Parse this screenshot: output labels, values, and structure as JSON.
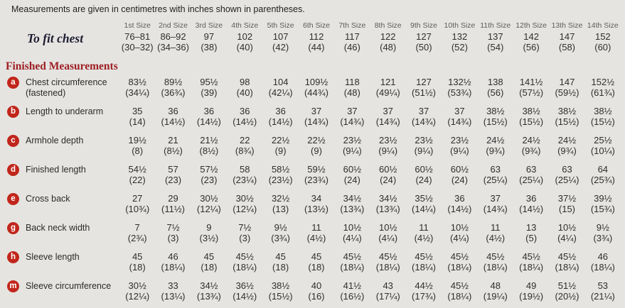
{
  "note": "Measurements are given in centimetres with inches shown in parentheses.",
  "colors": {
    "background": "#e5e4e1",
    "badge_red": "#c1261b",
    "heading_red": "#9e1f24",
    "header_gray": "#5c5c5c",
    "text_dark": "#2b2b2b",
    "to_fit_navy": "#1d1c30"
  },
  "table": {
    "size_headers": [
      "1st Size",
      "2nd Size",
      "3rd Size",
      "4th Size",
      "5th Size",
      "6th Size",
      "7th Size",
      "8th Size",
      "9th Size",
      "10th Size",
      "11th Size",
      "12th Size",
      "13th Size",
      "14th Size"
    ],
    "to_fit": {
      "label": "To fit chest",
      "cm": [
        "76–81",
        "86–92",
        "97",
        "102",
        "107",
        "112",
        "117",
        "122",
        "127",
        "132",
        "137",
        "142",
        "147",
        "152"
      ],
      "inches": [
        "(30–32)",
        "(34–36)",
        "(38)",
        "(40)",
        "(42)",
        "(44)",
        "(46)",
        "(48)",
        "(50)",
        "(52)",
        "(54)",
        "(56)",
        "(58)",
        "(60)"
      ]
    },
    "section_title": "Finished Measurements",
    "rows": [
      {
        "badge": "a",
        "label_lines": [
          "Chest circumference",
          "(fastened)"
        ],
        "cm": [
          "83½",
          "89½",
          "95½",
          "98",
          "104",
          "109½",
          "118",
          "121",
          "127",
          "132½",
          "138",
          "141½",
          "147",
          "152½"
        ],
        "inches": [
          "(34¼)",
          "(36¾)",
          "(39)",
          "(40)",
          "(42¼)",
          "(44¾)",
          "(48)",
          "(49¼)",
          "(51½)",
          "(53¾)",
          "(56)",
          "(57½)",
          "(59½)",
          "(61¾)"
        ]
      },
      {
        "badge": "b",
        "label_lines": [
          "Length to underarm"
        ],
        "cm": [
          "35",
          "36",
          "36",
          "36",
          "36",
          "37",
          "37",
          "37",
          "37",
          "37",
          "38½",
          "38½",
          "38½",
          "38½"
        ],
        "inches": [
          "(14)",
          "(14½)",
          "(14½)",
          "(14½)",
          "(14½)",
          "(14¾)",
          "(14¾)",
          "(14¾)",
          "(14¾)",
          "(14¾)",
          "(15½)",
          "(15½)",
          "(15½)",
          "(15½)"
        ]
      },
      {
        "badge": "c",
        "label_lines": [
          "Armhole depth"
        ],
        "cm": [
          "19½",
          "21",
          "21½",
          "22",
          "22½",
          "22½",
          "23½",
          "23½",
          "23½",
          "23½",
          "24½",
          "24½",
          "24½",
          "25½"
        ],
        "inches": [
          "(8)",
          "(8½)",
          "(8½)",
          "(8¾)",
          "(9)",
          "(9)",
          "(9¼)",
          "(9¼)",
          "(9¼)",
          "(9¼)",
          "(9¾)",
          "(9¾)",
          "(9¾)",
          "(10¼)"
        ]
      },
      {
        "badge": "d",
        "label_lines": [
          "Finished length"
        ],
        "cm": [
          "54½",
          "57",
          "57½",
          "58",
          "58½",
          "59½",
          "60½",
          "60½",
          "60½",
          "60½",
          "63",
          "63",
          "63",
          "64"
        ],
        "inches": [
          "(22)",
          "(23)",
          "(23)",
          "(23¼)",
          "(23½)",
          "(23¾)",
          "(24)",
          "(24)",
          "(24)",
          "(24)",
          "(25¼)",
          "(25¼)",
          "(25¼)",
          "(25¾)"
        ]
      },
      {
        "badge": "e",
        "label_lines": [
          "Cross back"
        ],
        "cm": [
          "27",
          "29",
          "30½",
          "30½",
          "32½",
          "34",
          "34½",
          "34½",
          "35½",
          "36",
          "37",
          "36",
          "37½",
          "39½"
        ],
        "inches": [
          "(10¾)",
          "(11½)",
          "(12¼)",
          "(12¼)",
          "(13)",
          "(13½)",
          "(13¾)",
          "(13¾)",
          "(14¼)",
          "(14½)",
          "(14¾)",
          "(14½)",
          "(15)",
          "(15¾)"
        ]
      },
      {
        "badge": "g",
        "label_lines": [
          "Back neck width"
        ],
        "cm": [
          "7",
          "7½",
          "9",
          "7½",
          "9½",
          "11",
          "10½",
          "10½",
          "11",
          "10½",
          "11",
          "13",
          "10½",
          "9½"
        ],
        "inches": [
          "(2¾)",
          "(3)",
          "(3½)",
          "(3)",
          "(3¾)",
          "(4½)",
          "(4¼)",
          "(4¼)",
          "(4½)",
          "(4¼)",
          "(4½)",
          "(5)",
          "(4¼)",
          "(3¾)"
        ]
      },
      {
        "badge": "h",
        "label_lines": [
          "Sleeve length"
        ],
        "cm": [
          "45",
          "46",
          "45",
          "45½",
          "45",
          "45",
          "45½",
          "45½",
          "45½",
          "45½",
          "45½",
          "45½",
          "45½",
          "46"
        ],
        "inches": [
          "(18)",
          "(18¼)",
          "(18)",
          "(18¼)",
          "(18)",
          "(18)",
          "(18¼)",
          "(18¼)",
          "(18¼)",
          "(18¼)",
          "(18¼)",
          "(18¼)",
          "(18¼)",
          "(18¼)"
        ]
      },
      {
        "badge": "m",
        "label_lines": [
          "Sleeve circumference"
        ],
        "cm": [
          "30½",
          "33",
          "34½",
          "36½",
          "38½",
          "40",
          "41½",
          "43",
          "44½",
          "45½",
          "48",
          "49",
          "51½",
          "53"
        ],
        "inches": [
          "(12¼)",
          "(13¼)",
          "(13¾)",
          "(14½)",
          "(15½)",
          "(16)",
          "(16½)",
          "(17¼)",
          "(17¾)",
          "(18¼)",
          "(19¼)",
          "(19½)",
          "(20½)",
          "(21¼)"
        ]
      }
    ]
  }
}
